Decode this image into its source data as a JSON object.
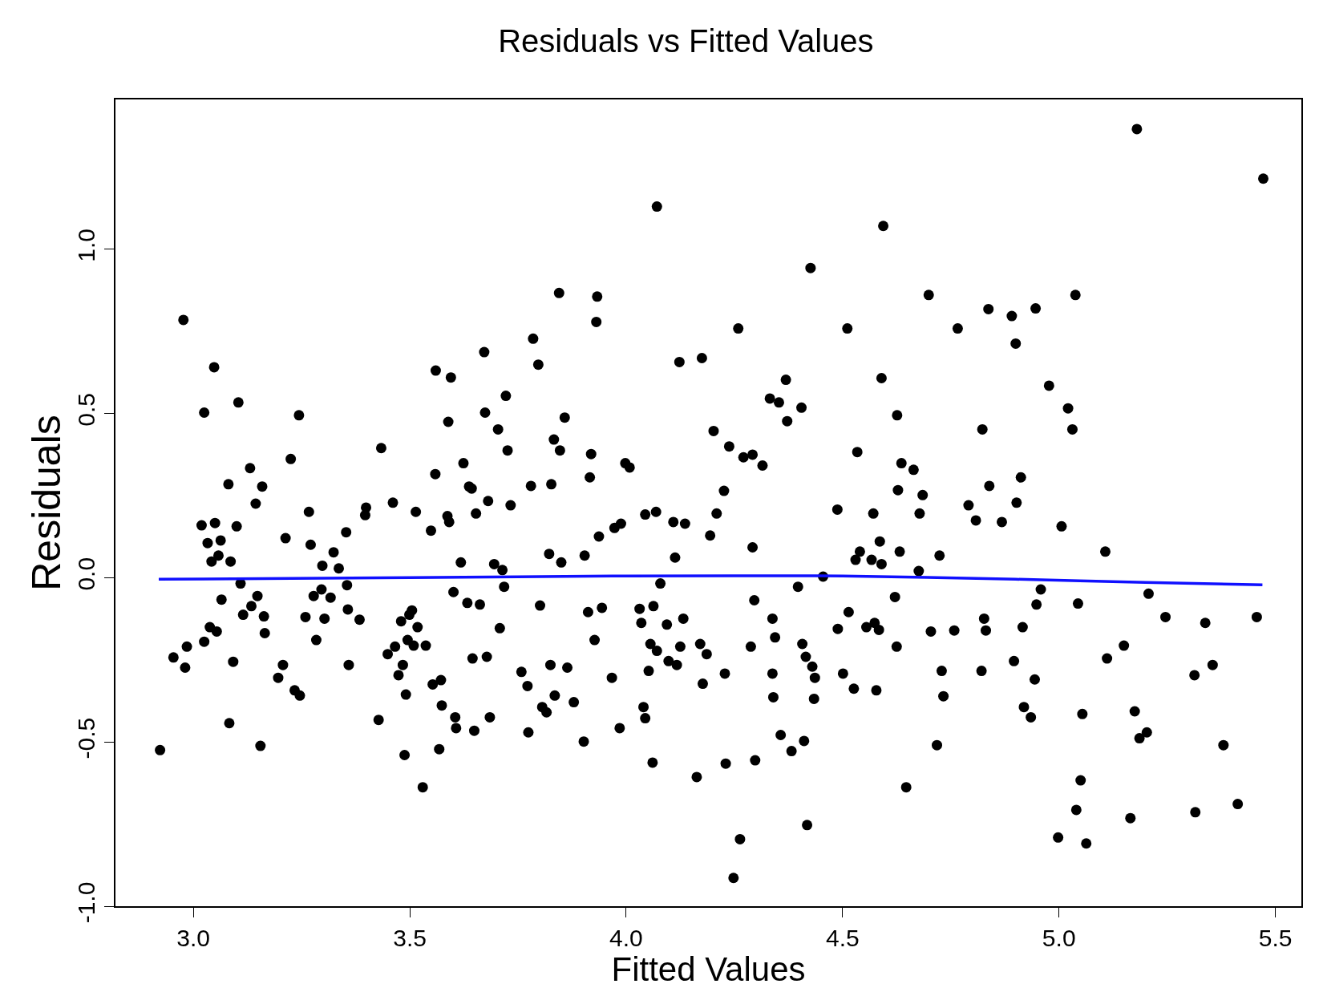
{
  "chart_data": {
    "type": "scatter",
    "title": "Residuals vs Fitted Values",
    "xlabel": "Fitted Values",
    "ylabel": "Residuals",
    "xlim": [
      2.82,
      5.56
    ],
    "ylim": [
      -1.0,
      1.455
    ],
    "xticks": [
      {
        "value": 3,
        "label": "3.0"
      },
      {
        "value": 3.5,
        "label": "3.5"
      },
      {
        "value": 4,
        "label": "4.0"
      },
      {
        "value": 4.5,
        "label": "4.5"
      },
      {
        "value": 5,
        "label": "5.0"
      },
      {
        "value": 5.5,
        "label": "5.5"
      }
    ],
    "yticks": [
      {
        "value": -1,
        "label": "-1.0"
      },
      {
        "value": -0.5,
        "label": "-0.5"
      },
      {
        "value": 0,
        "label": "0.0"
      },
      {
        "value": 0.5,
        "label": "0.5"
      },
      {
        "value": 1,
        "label": "1.0"
      }
    ],
    "grid": false,
    "marker": "circle",
    "series": [
      {
        "color": "#000000",
        "x": [
          2.923,
          2.954,
          2.977,
          2.981,
          2.985,
          3.019,
          3.025,
          3.025,
          3.033,
          3.038,
          3.042,
          3.048,
          3.05,
          3.054,
          3.058,
          3.063,
          3.065,
          3.081,
          3.083,
          3.086,
          3.092,
          3.1,
          3.104,
          3.109,
          3.115,
          3.131,
          3.134,
          3.144,
          3.148,
          3.155,
          3.159,
          3.163,
          3.165,
          3.196,
          3.207,
          3.213,
          3.225,
          3.234,
          3.244,
          3.246,
          3.259,
          3.267,
          3.271,
          3.278,
          3.284,
          3.296,
          3.298,
          3.303,
          3.317,
          3.324,
          3.336,
          3.353,
          3.355,
          3.359,
          3.357,
          3.384,
          3.397,
          3.399,
          3.428,
          3.434,
          3.449,
          3.461,
          3.466,
          3.474,
          3.48,
          3.484,
          3.488,
          3.491,
          3.495,
          3.499,
          3.505,
          3.509,
          3.514,
          3.518,
          3.53,
          3.537,
          3.549,
          3.553,
          3.559,
          3.56,
          3.568,
          3.572,
          3.574,
          3.587,
          3.589,
          3.591,
          3.595,
          3.601,
          3.605,
          3.607,
          3.618,
          3.624,
          3.633,
          3.637,
          3.643,
          3.649,
          3.645,
          3.653,
          3.662,
          3.672,
          3.674,
          3.678,
          3.681,
          3.685,
          3.695,
          3.704,
          3.708,
          3.714,
          3.718,
          3.722,
          3.726,
          3.733,
          3.758,
          3.772,
          3.774,
          3.78,
          3.785,
          3.797,
          3.801,
          3.806,
          3.816,
          3.822,
          3.825,
          3.827,
          3.833,
          3.835,
          3.845,
          3.847,
          3.85,
          3.858,
          3.864,
          3.879,
          3.902,
          3.904,
          3.912,
          3.916,
          3.919,
          3.927,
          3.931,
          3.933,
          3.937,
          3.944,
          3.967,
          3.973,
          3.985,
          3.988,
          3.998,
          4.008,
          4.031,
          4.035,
          4.04,
          4.044,
          4.044,
          4.052,
          4.056,
          4.061,
          4.063,
          4.069,
          4.071,
          4.071,
          4.079,
          4.094,
          4.098,
          4.109,
          4.113,
          4.117,
          4.123,
          4.125,
          4.132,
          4.136,
          4.163,
          4.171,
          4.175,
          4.177,
          4.186,
          4.194,
          4.202,
          4.209,
          4.226,
          4.228,
          4.23,
          4.238,
          4.248,
          4.259,
          4.263,
          4.271,
          4.288,
          4.292,
          4.292,
          4.296,
          4.298,
          4.315,
          4.332,
          4.338,
          4.338,
          4.34,
          4.344,
          4.353,
          4.357,
          4.369,
          4.372,
          4.382,
          4.397,
          4.405,
          4.407,
          4.411,
          4.415,
          4.418,
          4.426,
          4.43,
          4.434,
          4.436,
          4.455,
          4.488,
          4.489,
          4.501,
          4.511,
          4.514,
          4.526,
          4.53,
          4.534,
          4.54,
          4.555,
          4.567,
          4.571,
          4.574,
          4.578,
          4.584,
          4.586,
          4.59,
          4.59,
          4.594,
          4.621,
          4.625,
          4.626,
          4.628,
          4.632,
          4.636,
          4.647,
          4.664,
          4.676,
          4.678,
          4.685,
          4.699,
          4.704,
          4.718,
          4.724,
          4.729,
          4.733,
          4.758,
          4.766,
          4.791,
          4.808,
          4.821,
          4.823,
          4.827,
          4.831,
          4.837,
          4.839,
          4.868,
          4.891,
          4.896,
          4.9,
          4.902,
          4.912,
          4.916,
          4.919,
          4.935,
          4.946,
          4.944,
          4.948,
          4.958,
          4.977,
          4.998,
          5.006,
          5.021,
          5.031,
          5.038,
          5.04,
          5.044,
          5.05,
          5.054,
          5.063,
          5.107,
          5.111,
          5.15,
          5.165,
          5.175,
          5.18,
          5.186,
          5.203,
          5.207,
          5.246,
          5.313,
          5.315,
          5.338,
          5.355,
          5.38,
          5.413,
          5.457,
          5.472
        ],
        "values": [
          -0.525,
          -0.243,
          0.784,
          -0.274,
          -0.21,
          0.159,
          0.502,
          -0.195,
          0.105,
          -0.151,
          0.049,
          0.64,
          0.166,
          -0.164,
          0.067,
          0.113,
          -0.067,
          0.284,
          -0.443,
          0.049,
          -0.256,
          0.156,
          0.533,
          -0.018,
          -0.113,
          0.333,
          -0.087,
          0.225,
          -0.056,
          -0.512,
          0.277,
          -0.118,
          -0.169,
          -0.305,
          -0.266,
          0.12,
          0.361,
          -0.343,
          0.494,
          -0.359,
          -0.12,
          0.2,
          0.1,
          -0.056,
          -0.19,
          -0.036,
          0.036,
          -0.125,
          -0.061,
          0.077,
          0.028,
          0.138,
          -0.023,
          -0.266,
          -0.097,
          -0.128,
          0.19,
          0.213,
          -0.433,
          0.394,
          -0.233,
          0.228,
          -0.21,
          -0.297,
          -0.133,
          -0.266,
          -0.54,
          -0.356,
          -0.19,
          -0.113,
          -0.1,
          -0.207,
          0.2,
          -0.151,
          -0.638,
          -0.207,
          0.143,
          -0.325,
          0.315,
          0.63,
          -0.522,
          -0.312,
          -0.389,
          0.187,
          0.474,
          0.169,
          0.609,
          -0.044,
          -0.425,
          -0.458,
          0.046,
          0.348,
          -0.077,
          0.277,
          0.271,
          -0.466,
          -0.246,
          0.195,
          -0.082,
          0.686,
          0.502,
          -0.241,
          0.233,
          -0.425,
          0.041,
          0.451,
          -0.154,
          0.023,
          -0.028,
          0.553,
          0.387,
          0.22,
          -0.287,
          -0.33,
          -0.471,
          0.279,
          0.727,
          0.648,
          -0.085,
          -0.394,
          -0.41,
          0.072,
          -0.266,
          0.284,
          0.42,
          -0.359,
          0.866,
          0.387,
          0.046,
          0.487,
          -0.274,
          -0.379,
          -0.499,
          0.067,
          -0.105,
          0.305,
          0.376,
          -0.19,
          0.778,
          0.855,
          0.125,
          -0.092,
          -0.305,
          0.151,
          -0.458,
          0.164,
          0.348,
          0.335,
          -0.095,
          -0.138,
          -0.394,
          -0.428,
          0.192,
          -0.284,
          -0.202,
          -0.563,
          -0.087,
          0.2,
          1.129,
          -0.223,
          -0.018,
          -0.143,
          -0.254,
          0.169,
          0.061,
          -0.266,
          0.656,
          -0.21,
          -0.125,
          0.164,
          -0.607,
          -0.202,
          0.668,
          -0.323,
          -0.233,
          0.128,
          0.446,
          0.195,
          0.264,
          -0.292,
          -0.566,
          0.399,
          -0.914,
          0.758,
          -0.796,
          0.366,
          -0.21,
          0.092,
          0.374,
          -0.069,
          -0.556,
          0.341,
          0.545,
          -0.125,
          -0.292,
          -0.364,
          -0.182,
          0.533,
          -0.479,
          0.602,
          0.476,
          -0.528,
          -0.028,
          0.517,
          -0.202,
          -0.497,
          -0.241,
          -0.753,
          0.942,
          -0.271,
          -0.369,
          -0.305,
          0.003,
          0.207,
          -0.156,
          -0.292,
          0.758,
          -0.105,
          -0.338,
          0.054,
          0.382,
          0.079,
          -0.151,
          0.054,
          0.195,
          -0.138,
          -0.343,
          -0.159,
          0.11,
          0.607,
          0.041,
          1.07,
          -0.059,
          -0.21,
          0.494,
          0.266,
          0.079,
          0.348,
          -0.638,
          0.328,
          0.02,
          0.195,
          0.251,
          0.86,
          -0.164,
          -0.51,
          0.067,
          -0.284,
          -0.361,
          -0.161,
          0.758,
          0.22,
          0.174,
          -0.284,
          0.451,
          -0.125,
          -0.161,
          0.817,
          0.279,
          0.169,
          0.796,
          -0.254,
          0.712,
          0.228,
          0.305,
          -0.151,
          -0.394,
          -0.425,
          0.819,
          -0.31,
          -0.082,
          -0.036,
          0.584,
          -0.791,
          0.156,
          0.515,
          0.451,
          0.86,
          -0.707,
          -0.079,
          -0.617,
          -0.415,
          -0.809,
          0.079,
          -0.246,
          -0.207,
          -0.732,
          -0.407,
          1.365,
          -0.489,
          -0.471,
          -0.049,
          -0.12,
          -0.297,
          -0.714,
          -0.138,
          -0.266,
          -0.51,
          -0.689,
          -0.12,
          1.214
        ]
      },
      {
        "type": "line",
        "color": "#1010ff",
        "marker": "none",
        "x": [
          2.92,
          3.5,
          4.0,
          4.5,
          4.9,
          5.2,
          5.47
        ],
        "values": [
          -0.005,
          0.0,
          0.005,
          0.005,
          -0.005,
          -0.015,
          -0.022
        ]
      }
    ]
  }
}
